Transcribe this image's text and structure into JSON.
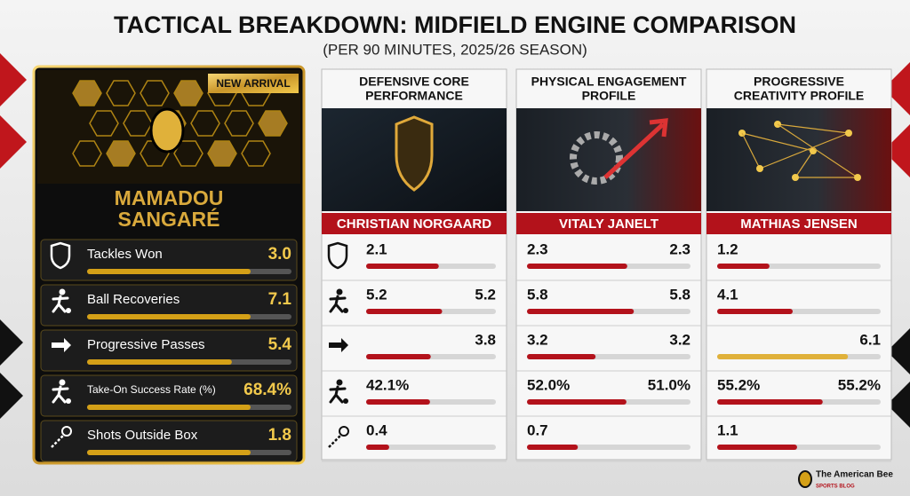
{
  "header": {
    "title": "TACTICAL BREAKDOWN: MIDFIELD ENGINE COMPARISON",
    "subtitle": "(PER 90 MINUTES, 2025/26 SEASON)"
  },
  "featured": {
    "badge": "NEW ARRIVAL",
    "name_lines": [
      "MAMADOU",
      "SANGARÉ"
    ],
    "stats": [
      {
        "label": "Tackles Won",
        "value": 3.0,
        "value_label": "3.0"
      },
      {
        "label": "Ball Recoveries",
        "value": 7.1,
        "value_label": "7.1"
      },
      {
        "label": "Progressive Passes",
        "value": 5.4,
        "value_label": "5.4"
      },
      {
        "label": "Take-On Success Rate (%)",
        "value": 68.4,
        "value_label": "68.4%"
      },
      {
        "label": "Shots Outside Box",
        "value": 1.8,
        "value_label": "1.8"
      }
    ]
  },
  "panels": [
    {
      "title_lines": [
        "DEFENSIVE CORE",
        "PERFORMANCE"
      ],
      "player": "CHRISTIAN NORGAARD",
      "rows": [
        {
          "left": {
            "value": 2.1,
            "label": "2.1"
          }
        },
        {
          "left": {
            "value": 5.2,
            "label": "5.2"
          },
          "right": {
            "value": 5.2,
            "label": "5.2"
          }
        },
        {
          "right": {
            "value": 3.8,
            "label": "3.8"
          }
        },
        {
          "left": {
            "value": 42.1,
            "label": "42.1%"
          }
        },
        {
          "left": {
            "value": 0.4,
            "label": "0.4"
          }
        }
      ]
    },
    {
      "title_lines": [
        "PHYSICAL ENGAGEMENT",
        "PROFILE"
      ],
      "player": "VITALY JANELT",
      "rows": [
        {
          "left": {
            "value": 2.3,
            "label": "2.3"
          },
          "right": {
            "value": 2.3,
            "label": "2.3"
          }
        },
        {
          "left": {
            "value": 5.8,
            "label": "5.8"
          },
          "right": {
            "value": 5.8,
            "label": "5.8"
          }
        },
        {
          "left": {
            "value": 3.2,
            "label": "3.2"
          },
          "right": {
            "value": 3.2,
            "label": "3.2"
          }
        },
        {
          "left": {
            "value": 52.0,
            "label": "52.0%"
          },
          "right": {
            "value": 51.0,
            "label": "51.0%"
          }
        },
        {
          "left": {
            "value": 0.7,
            "label": "0.7"
          }
        }
      ]
    },
    {
      "title_lines": [
        "PROGRESSIVE",
        "CREATIVITY PROFILE"
      ],
      "player": "MATHIAS JENSEN",
      "rows": [
        {
          "left": {
            "value": 1.2,
            "label": "1.2"
          }
        },
        {
          "left": {
            "value": 4.1,
            "label": "4.1"
          }
        },
        {
          "right": {
            "value": 6.1,
            "label": "6.1"
          },
          "highlight": true
        },
        {
          "left": {
            "value": 55.2,
            "label": "55.2%"
          },
          "right": {
            "value": 55.2,
            "label": "55.2%"
          }
        },
        {
          "left": {
            "value": 1.1,
            "label": "1.1"
          }
        }
      ]
    }
  ],
  "footer": {
    "brand": "The American Bee",
    "tagline": "SPORTS BLOG"
  }
}
